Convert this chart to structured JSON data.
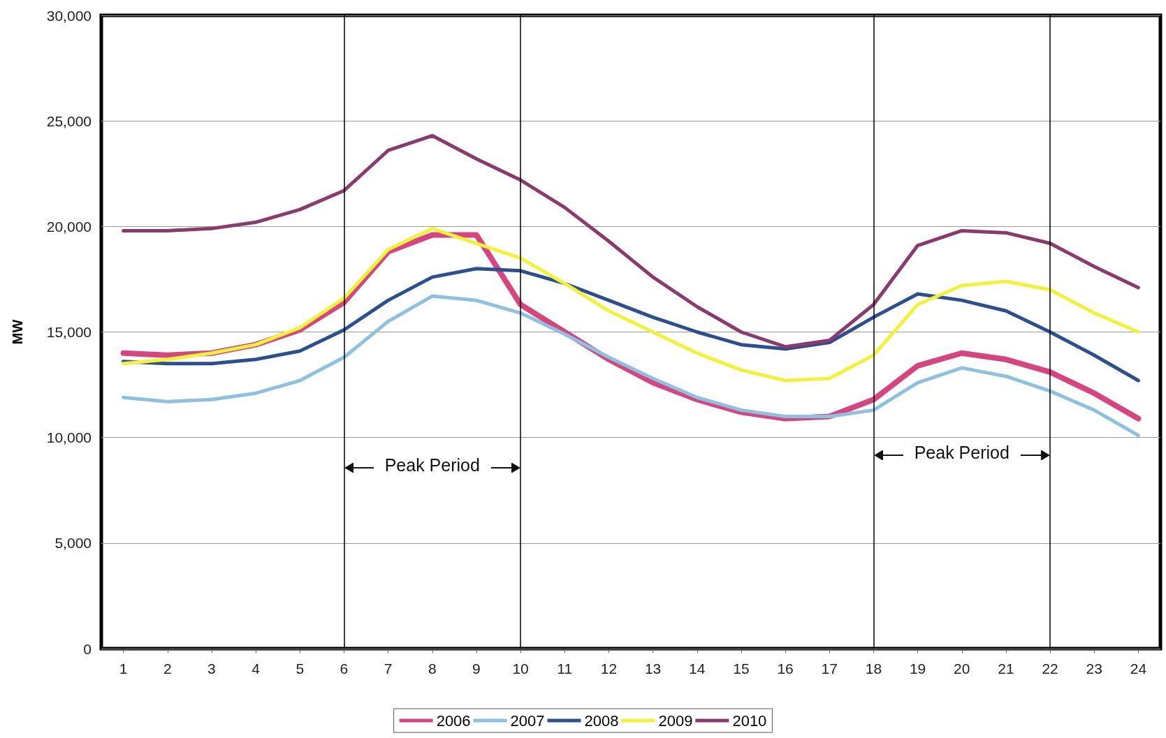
{
  "chart_data": {
    "type": "line",
    "ylabel": "MW",
    "x": [
      1,
      2,
      3,
      4,
      5,
      6,
      7,
      8,
      9,
      10,
      11,
      12,
      13,
      14,
      15,
      16,
      17,
      18,
      19,
      20,
      21,
      22,
      23,
      24
    ],
    "xlim": [
      0.5,
      24.5
    ],
    "xticks": [
      1,
      2,
      3,
      4,
      5,
      6,
      7,
      8,
      9,
      10,
      11,
      12,
      13,
      14,
      15,
      16,
      17,
      18,
      19,
      20,
      21,
      22,
      23,
      24
    ],
    "ylim": [
      0,
      30000
    ],
    "yticks": [
      {
        "value": 0,
        "label": "0"
      },
      {
        "value": 5000,
        "label": "5,000"
      },
      {
        "value": 10000,
        "label": "10,000"
      },
      {
        "value": 15000,
        "label": "15,000"
      },
      {
        "value": 20000,
        "label": "20,000"
      },
      {
        "value": 25000,
        "label": "25,000"
      },
      {
        "value": 30000,
        "label": "30,000"
      }
    ],
    "grid": "y",
    "legend": "bottom",
    "marker": "none",
    "line_style": "solid",
    "series": [
      {
        "name": "2006",
        "color": "#d6457f",
        "values": [
          14000,
          13900,
          14000,
          14400,
          15100,
          16400,
          18800,
          19600,
          19600,
          16300,
          15000,
          13700,
          12600,
          11800,
          11200,
          10900,
          11000,
          11800,
          13400,
          14000,
          13700,
          13100,
          12100,
          10900
        ]
      },
      {
        "name": "2007",
        "color": "#8ec1df",
        "values": [
          11900,
          11700,
          11800,
          12100,
          12700,
          13800,
          15500,
          16700,
          16500,
          15900,
          14900,
          13800,
          12800,
          11900,
          11300,
          11000,
          11000,
          11300,
          12600,
          13300,
          12900,
          12200,
          11300,
          10100
        ]
      },
      {
        "name": "2008",
        "color": "#2e4f8f",
        "values": [
          13600,
          13500,
          13500,
          13700,
          14100,
          15100,
          16500,
          17600,
          18000,
          17900,
          17300,
          16500,
          15700,
          15000,
          14400,
          14200,
          14500,
          15700,
          16800,
          16500,
          16000,
          15000,
          13900,
          12700
        ]
      },
      {
        "name": "2009",
        "color": "#f2f23a",
        "values": [
          13500,
          13700,
          14000,
          14400,
          15200,
          16600,
          18900,
          19900,
          19200,
          18500,
          17300,
          16000,
          15000,
          14000,
          13200,
          12700,
          12800,
          13900,
          16300,
          17200,
          17400,
          17000,
          15900,
          15000
        ]
      },
      {
        "name": "2010",
        "color": "#8b3a6e",
        "values": [
          19800,
          19800,
          19900,
          20200,
          20800,
          21700,
          23600,
          24300,
          23200,
          22200,
          20900,
          19300,
          17600,
          16200,
          15000,
          14300,
          14600,
          16300,
          19100,
          19800,
          19700,
          19200,
          18100,
          17100
        ]
      }
    ],
    "ref_lines": [
      {
        "axis": "x",
        "value": 6,
        "color": "#000000"
      },
      {
        "axis": "x",
        "value": 10,
        "color": "#000000"
      },
      {
        "axis": "x",
        "value": 18,
        "color": "#000000"
      },
      {
        "axis": "x",
        "value": 22,
        "color": "#000000"
      }
    ],
    "annotations": [
      "Peak Period",
      "Peak Period"
    ]
  }
}
